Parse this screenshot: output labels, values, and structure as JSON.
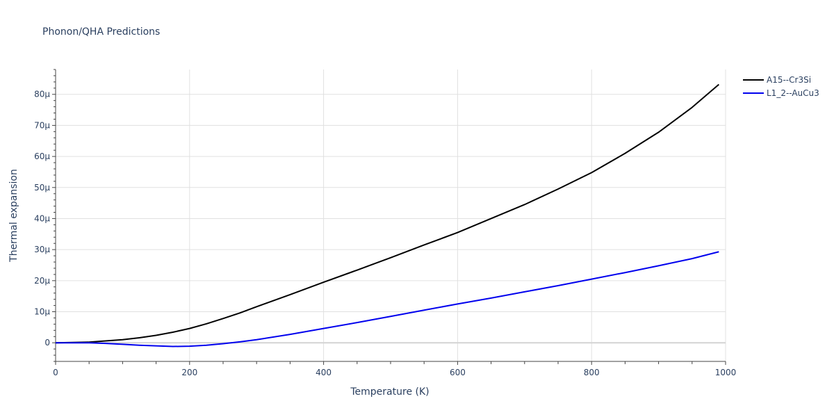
{
  "chart_data": {
    "type": "line",
    "title": "Phonon/QHA Predictions",
    "xlabel": "Temperature (K)",
    "ylabel": "Thermal expansion",
    "xlim": [
      0,
      1000
    ],
    "ylim": [
      -6e-06,
      8.8e-05
    ],
    "x_ticks": [
      0,
      200,
      400,
      600,
      800,
      1000
    ],
    "x_tick_labels": [
      "0",
      "200",
      "400",
      "600",
      "800",
      "1000"
    ],
    "y_ticks": [
      0,
      1e-05,
      2e-05,
      3e-05,
      4e-05,
      5e-05,
      6e-05,
      7e-05,
      8e-05
    ],
    "y_tick_labels": [
      "0",
      "10μ",
      "20μ",
      "30μ",
      "40μ",
      "50μ",
      "60μ",
      "70μ",
      "80μ"
    ],
    "grid": true,
    "legend_position": "top-right outside",
    "series": [
      {
        "name": "A15--Cr3Si",
        "color": "#000000",
        "x": [
          0,
          25,
          50,
          75,
          100,
          125,
          150,
          175,
          200,
          225,
          250,
          275,
          300,
          350,
          400,
          450,
          500,
          550,
          600,
          650,
          700,
          750,
          800,
          850,
          900,
          950,
          990
        ],
        "y": [
          0,
          1e-07,
          2e-07,
          6e-07,
          1e-06,
          1.6e-06,
          2.4e-06,
          3.4e-06,
          4.6e-06,
          6.1e-06,
          7.8e-06,
          9.6e-06,
          1.16e-05,
          1.55e-05,
          1.95e-05,
          2.34e-05,
          2.74e-05,
          3.15e-05,
          3.55e-05,
          4e-05,
          4.45e-05,
          4.95e-05,
          5.48e-05,
          6.1e-05,
          6.78e-05,
          7.58e-05,
          8.32e-05
        ]
      },
      {
        "name": "L1_2--AuCu3",
        "color": "#0000ee",
        "x": [
          0,
          25,
          50,
          75,
          100,
          125,
          150,
          175,
          200,
          225,
          250,
          275,
          300,
          350,
          400,
          450,
          500,
          550,
          600,
          650,
          700,
          750,
          800,
          850,
          900,
          950,
          990
        ],
        "y": [
          0,
          0,
          0,
          -2e-07,
          -5e-07,
          -8e-07,
          -1e-06,
          -1.2e-06,
          -1.1e-06,
          -8e-07,
          -3e-07,
          3e-07,
          1e-06,
          2.7e-06,
          4.6e-06,
          6.5e-06,
          8.5e-06,
          1.05e-05,
          1.25e-05,
          1.44e-05,
          1.64e-05,
          1.84e-05,
          2.05e-05,
          2.26e-05,
          2.48e-05,
          2.71e-05,
          2.93e-05
        ]
      }
    ]
  }
}
